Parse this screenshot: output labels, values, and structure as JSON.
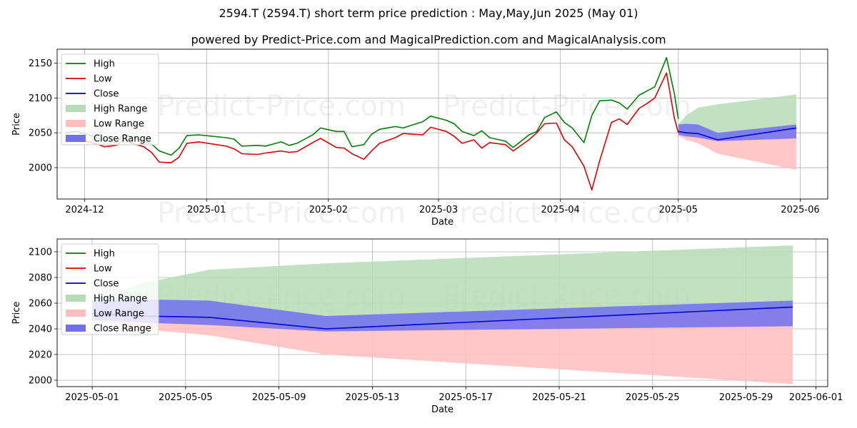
{
  "title": "2594.T (2594.T) short term price prediction : May,May,Jun 2025 (May 01)",
  "subtitle": "powered by Predict-Price.com and MagicalPrediction.com and MagicalAnalysis.com",
  "watermark": "Predict-Price.com",
  "colors": {
    "high": "#008000",
    "low": "#e00000",
    "close": "#0000cc",
    "high_range": "#b6dcb6",
    "low_range": "#ffbdbd",
    "close_range": "#7070f0"
  },
  "chart_data": [
    {
      "type": "line",
      "xlabel": "Date",
      "ylabel": "Price",
      "ylim": [
        1955,
        2170
      ],
      "yticks": [
        2000,
        2050,
        2100,
        2150
      ],
      "xticks": [
        "2024-12",
        "2025-01",
        "2025-02",
        "2025-03",
        "2025-04",
        "2025-05",
        "2025-06"
      ],
      "xtick_dates": [
        "2024-12-01",
        "2025-01-01",
        "2025-02-01",
        "2025-03-01",
        "2025-04-01",
        "2025-05-01",
        "2025-06-01"
      ],
      "xlim": [
        "2024-11-24",
        "2025-06-08"
      ],
      "grid": true,
      "legend": "top-left",
      "legend_labels": [
        "High",
        "Low",
        "Close",
        "High Range",
        "Low Range",
        "Close Range"
      ],
      "history": {
        "dates": [
          "2024-11-26",
          "2024-11-29",
          "2024-12-02",
          "2024-12-04",
          "2024-12-06",
          "2024-12-09",
          "2024-12-11",
          "2024-12-13",
          "2024-12-16",
          "2024-12-18",
          "2024-12-20",
          "2024-12-23",
          "2024-12-25",
          "2024-12-27",
          "2024-12-30",
          "2025-01-06",
          "2025-01-08",
          "2025-01-10",
          "2025-01-14",
          "2025-01-16",
          "2025-01-20",
          "2025-01-22",
          "2025-01-24",
          "2025-01-28",
          "2025-01-30",
          "2025-02-03",
          "2025-02-05",
          "2025-02-07",
          "2025-02-10",
          "2025-02-12",
          "2025-02-14",
          "2025-02-18",
          "2025-02-20",
          "2025-02-25",
          "2025-02-27",
          "2025-03-03",
          "2025-03-05",
          "2025-03-07",
          "2025-03-10",
          "2025-03-12",
          "2025-03-14",
          "2025-03-18",
          "2025-03-20",
          "2025-03-24",
          "2025-03-26",
          "2025-03-28",
          "2025-03-31",
          "2025-04-02",
          "2025-04-04",
          "2025-04-07",
          "2025-04-09",
          "2025-04-11",
          "2025-04-14",
          "2025-04-16",
          "2025-04-18",
          "2025-04-21",
          "2025-04-23",
          "2025-04-25",
          "2025-04-28",
          "2025-04-30",
          "2025-05-01"
        ],
        "high": [
          2050,
          2052,
          2047,
          2043,
          2040,
          2036,
          2048,
          2044,
          2039,
          2034,
          2024,
          2018,
          2028,
          2046,
          2047,
          2043,
          2041,
          2031,
          2032,
          2031,
          2037,
          2032,
          2035,
          2047,
          2057,
          2052,
          2052,
          2030,
          2033,
          2048,
          2055,
          2059,
          2057,
          2066,
          2074,
          2068,
          2063,
          2052,
          2046,
          2053,
          2043,
          2038,
          2029,
          2047,
          2052,
          2072,
          2080,
          2065,
          2057,
          2036,
          2075,
          2096,
          2097,
          2093,
          2084,
          2104,
          2110,
          2116,
          2158,
          2106,
          2070
        ],
        "low": [
          2045,
          2040,
          2037,
          2034,
          2030,
          2032,
          2040,
          2035,
          2030,
          2022,
          2008,
          2007,
          2015,
          2035,
          2037,
          2031,
          2027,
          2020,
          2019,
          2021,
          2024,
          2022,
          2023,
          2036,
          2042,
          2029,
          2028,
          2020,
          2012,
          2024,
          2035,
          2043,
          2049,
          2047,
          2058,
          2052,
          2045,
          2035,
          2040,
          2028,
          2036,
          2033,
          2024,
          2040,
          2050,
          2063,
          2064,
          2040,
          2030,
          2002,
          1968,
          2010,
          2065,
          2070,
          2062,
          2085,
          2092,
          2100,
          2136,
          2071,
          2050
        ]
      },
      "forecast": {
        "dates": [
          "2025-05-01",
          "2025-05-03",
          "2025-05-06",
          "2025-05-11",
          "2025-05-31"
        ],
        "high_upper": [
          2062,
          2075,
          2086,
          2091,
          2105
        ],
        "low_lower": [
          2046,
          2040,
          2035,
          2020,
          1997
        ],
        "close_upper": [
          2062,
          2063,
          2062,
          2050,
          2062
        ],
        "close_lower": [
          2047,
          2045,
          2043,
          2038,
          2042
        ],
        "close": [
          2052,
          2050,
          2049,
          2040,
          2057
        ]
      }
    },
    {
      "type": "line",
      "xlabel": "Date",
      "ylabel": "Price",
      "ylim": [
        1995,
        2110
      ],
      "yticks": [
        2000,
        2020,
        2040,
        2060,
        2080,
        2100
      ],
      "xticks": [
        "2025-05-01",
        "2025-05-05",
        "2025-05-09",
        "2025-05-13",
        "2025-05-17",
        "2025-05-21",
        "2025-05-25",
        "2025-05-29",
        "2025-06-01"
      ],
      "xtick_dates": [
        "2025-05-01",
        "2025-05-05",
        "2025-05-09",
        "2025-05-13",
        "2025-05-17",
        "2025-05-21",
        "2025-05-25",
        "2025-05-29",
        "2025-06-01"
      ],
      "xlim": [
        "2025-04-29T12:00",
        "2025-06-01T12:00"
      ],
      "grid": true,
      "legend": "top-left",
      "legend_labels": [
        "High",
        "Low",
        "Close",
        "High Range",
        "Low Range",
        "Close Range"
      ],
      "forecast": {
        "dates": [
          "2025-05-01",
          "2025-05-03",
          "2025-05-06",
          "2025-05-11",
          "2025-05-31"
        ],
        "high_upper": [
          2062,
          2075,
          2086,
          2091,
          2105
        ],
        "low_lower": [
          2046,
          2040,
          2035,
          2020,
          1997
        ],
        "close_upper": [
          2062,
          2063,
          2062,
          2050,
          2062
        ],
        "close_lower": [
          2047,
          2045,
          2043,
          2038,
          2042
        ],
        "close": [
          2052,
          2050,
          2049,
          2040,
          2057
        ]
      }
    }
  ]
}
